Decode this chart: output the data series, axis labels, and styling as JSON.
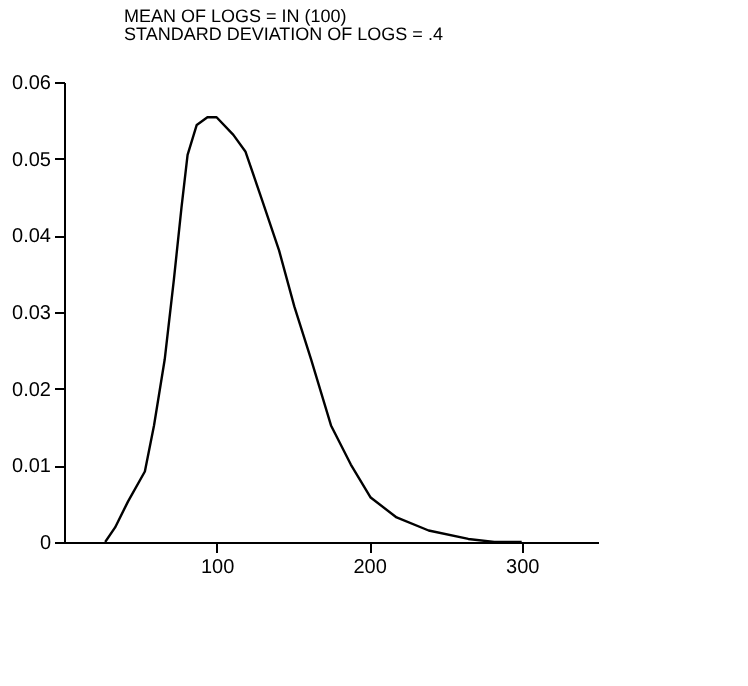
{
  "chart_data": {
    "type": "line",
    "title": "MEAN OF LOGS = IN (100)",
    "subtitle": "STANDARD DEVIATION OF LOGS = .4",
    "x": [
      27,
      33.5,
      42,
      53,
      59,
      66,
      72,
      77,
      81,
      87,
      94,
      100,
      111,
      119,
      130,
      141,
      151,
      162,
      175,
      188,
      201,
      218,
      239,
      265,
      282,
      300
    ],
    "series": [
      {
        "color": "#000000",
        "values": [
          0,
          0.0019,
          0.0053,
          0.0092,
          0.0152,
          0.0238,
          0.0342,
          0.0436,
          0.0505,
          0.0544,
          0.0554,
          0.0554,
          0.0531,
          0.0509,
          0.0445,
          0.038,
          0.0307,
          0.0238,
          0.0152,
          0.0101,
          0.0058,
          0.0032,
          0.0015,
          0.0004,
          0,
          0
        ]
      }
    ],
    "xlim": [
      0,
      350
    ],
    "xticks": [
      100,
      200,
      300
    ],
    "ylim": [
      0,
      0.06
    ],
    "yticks": [
      0,
      0.01,
      0.02,
      0.03,
      0.04,
      0.05,
      0.06
    ],
    "grid": false,
    "legend": false,
    "marker": "none",
    "line_style": "solid"
  }
}
